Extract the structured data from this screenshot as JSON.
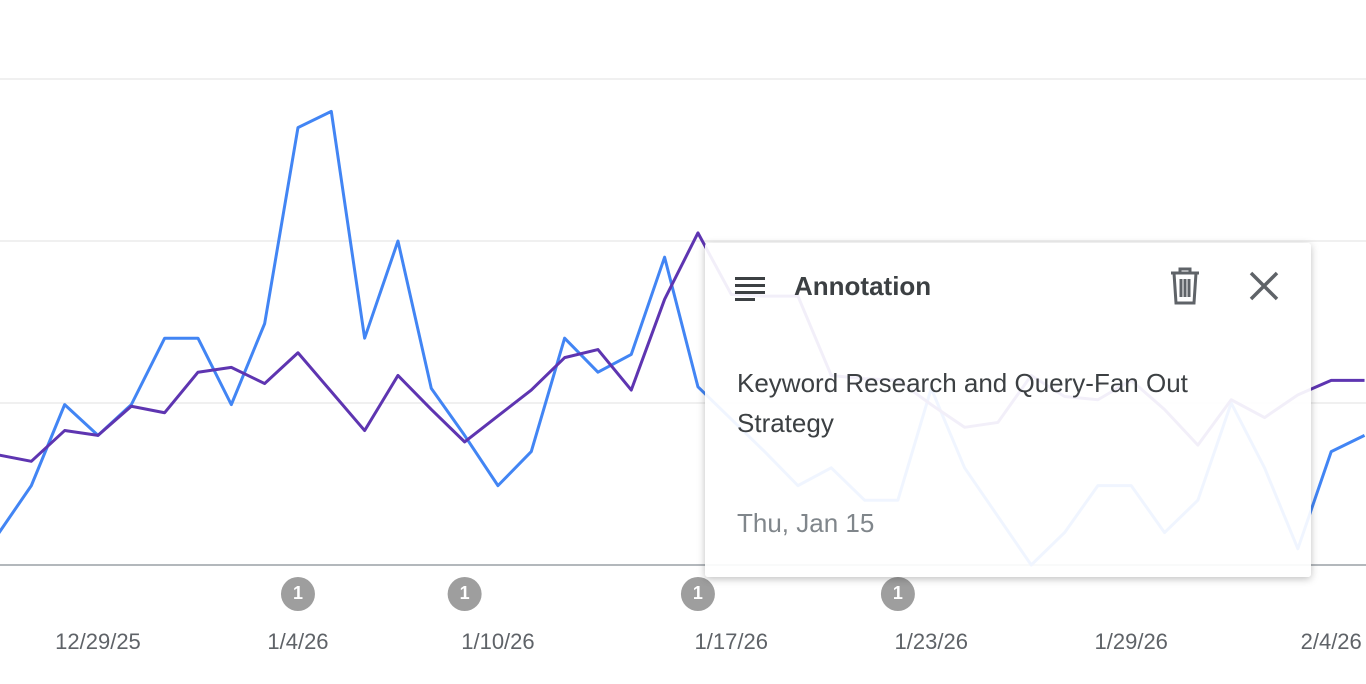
{
  "chart_data": {
    "type": "line",
    "categories": [
      null,
      null,
      null,
      "12/29/25",
      null,
      null,
      null,
      null,
      null,
      "1/4/26",
      null,
      null,
      null,
      null,
      null,
      "1/10/26",
      null,
      null,
      null,
      null,
      null,
      null,
      "1/17/26",
      null,
      null,
      null,
      null,
      null,
      "1/23/26",
      null,
      null,
      null,
      null,
      null,
      "1/29/26",
      null,
      null,
      null,
      null,
      null,
      "2/4/26",
      null
    ],
    "series": [
      {
        "color": "#4285f4",
        "values": [
          0.19,
          0.49,
          0.99,
          0.8,
          0.99,
          1.4,
          1.4,
          0.99,
          1.49,
          2.7,
          2.8,
          1.4,
          2.0,
          1.09,
          0.8,
          0.49,
          0.7,
          1.4,
          1.19,
          1.3,
          1.9,
          1.1,
          0.9,
          0.7,
          0.49,
          0.6,
          0.4,
          0.4,
          1.09,
          0.6,
          0.3,
          0,
          0.2,
          0.49,
          0.49,
          0.2,
          0.4,
          1.0,
          0.6,
          0.1,
          0.7,
          0.8
        ]
      },
      {
        "color": "#5e35b1",
        "values": [
          0.68,
          0.64,
          0.83,
          0.8,
          0.98,
          0.94,
          1.19,
          1.22,
          1.12,
          1.31,
          1.07,
          0.83,
          1.17,
          0.96,
          0.76,
          0.92,
          1.08,
          1.28,
          1.33,
          1.08,
          1.64,
          2.05,
          1.67,
          1.66,
          1.66,
          1.17,
          1.15,
          1.14,
          0.99,
          0.85,
          0.88,
          1.17,
          1.04,
          1.02,
          1.14,
          0.96,
          0.74,
          1.02,
          0.91,
          1.05,
          1.14,
          1.14
        ]
      }
    ],
    "ylim": [
      0,
      3
    ],
    "gridlines": [
      1,
      2,
      3
    ],
    "markers": [
      {
        "x": 9,
        "count": 1
      },
      {
        "x": 14,
        "count": 1
      },
      {
        "x": 21,
        "count": 1
      },
      {
        "x": 27,
        "count": 1
      }
    ]
  },
  "popup": {
    "title": "Annotation",
    "text": "Keyword Research and Query-Fan Out Strategy",
    "date": "Thu, Jan 15"
  }
}
